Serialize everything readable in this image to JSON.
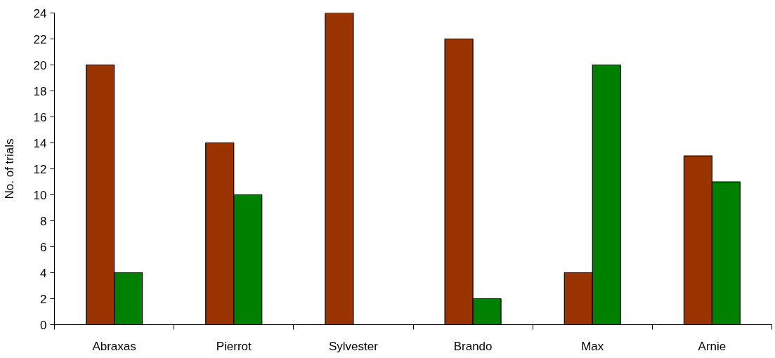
{
  "chart_data": {
    "type": "bar",
    "ylabel": "No. of trials",
    "categories": [
      "Abraxas",
      "Pierrot",
      "Sylvester",
      "Brando",
      "Max",
      "Arnie"
    ],
    "series": [
      {
        "color": "#993300",
        "values": [
          20,
          14,
          24,
          22,
          4,
          13
        ]
      },
      {
        "color": "#008000",
        "values": [
          4,
          10,
          null,
          2,
          20,
          11
        ]
      }
    ],
    "ylim": [
      0,
      24
    ],
    "yticks": [
      0,
      2,
      4,
      6,
      8,
      10,
      12,
      14,
      16,
      18,
      20,
      22,
      24
    ],
    "grid": false
  }
}
